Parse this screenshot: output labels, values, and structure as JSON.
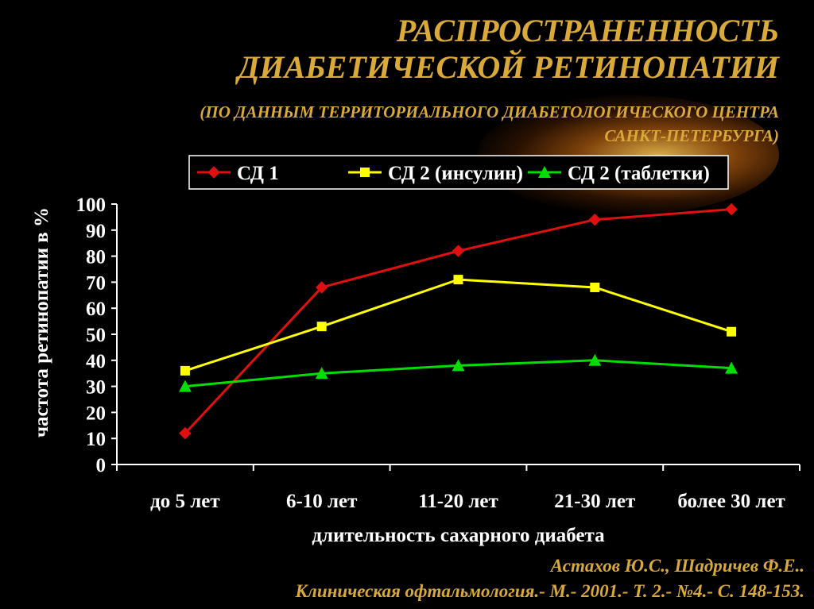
{
  "title": {
    "line1": "РАСПРОСТРАНЕННОСТЬ",
    "line2": "ДИАБЕТИЧЕСКОЙ РЕТИНОПАТИИ",
    "sub1": "(ПО ДАННЫМ ТЕРРИТОРИАЛЬНОГО ДИАБЕТОЛОГИЧЕСКОГО ЦЕНТРА",
    "sub2": "САНКТ-ПЕТЕРБУРГА)"
  },
  "citation": {
    "line1": "Астахов Ю.С., Шадричев Ф.Е..",
    "line2": "Клиническая офтальмология.- М.- 2001.- Т. 2.-   №4.- С. 148-153."
  },
  "colors": {
    "sd1": "#e01010",
    "sd2_insulin": "#ffff00",
    "sd2_tablets": "#00dd00",
    "title": "#d9a93a"
  },
  "chart_data": {
    "type": "line",
    "categories": [
      "до 5 лет",
      "6-10 лет",
      "11-20 лет",
      "21-30 лет",
      "более 30 лет"
    ],
    "series": [
      {
        "name": "СД 1",
        "values": [
          12,
          68,
          82,
          94,
          98
        ],
        "marker": "diamond"
      },
      {
        "name": "СД 2 (инсулин)",
        "values": [
          36,
          53,
          71,
          68,
          51
        ],
        "marker": "square"
      },
      {
        "name": "СД 2 (таблетки)",
        "values": [
          30,
          35,
          38,
          40,
          37
        ],
        "marker": "triangle"
      }
    ],
    "xlabel": "длительность сахарного диабета",
    "ylabel": "частота ретинопатии в %",
    "ylim": [
      0,
      100
    ],
    "yticks": [
      0,
      10,
      20,
      30,
      40,
      50,
      60,
      70,
      80,
      90,
      100
    ],
    "legend": "top",
    "grid": false
  }
}
